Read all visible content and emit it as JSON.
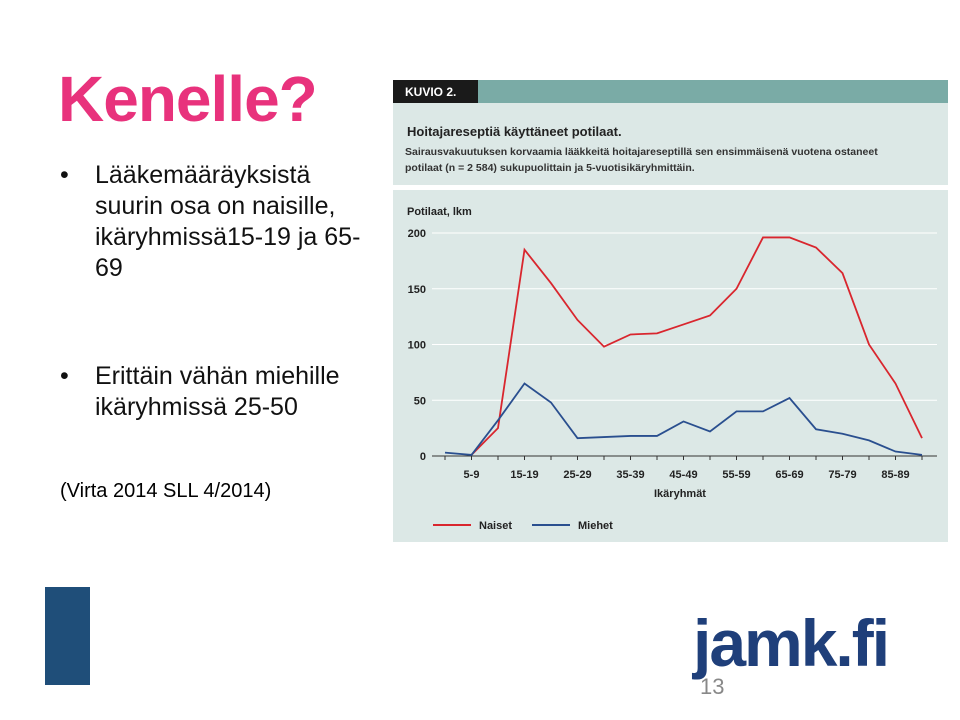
{
  "slide": {
    "title": "Kenelle?",
    "bullets": [
      "Lääkemääräyksistä suurin osa on naisille, ikäryhmissä15-19 ja 65-69",
      "Erittäin vähän miehille ikäryhmissä 25-50"
    ],
    "citation": "(Virta 2014 SLL 4/2014)",
    "logo": "jamk.fi",
    "page_number": "13"
  },
  "chart_data": {
    "type": "line",
    "figure_label": "KUVIO 2.",
    "title": "Hoitajareseptiä käyttäneet potilaat.",
    "subtitle": "Sairausvakuutuksen korvaamia lääkkeitä hoitajareseptillä sen ensimmäisenä vuotena ostaneet potilaat (n = 2 584) sukupuolittain ja 5-vuotisikäryhmittäin.",
    "y_label": "Potilaat, lkm",
    "x_label": "Ikäryhmät",
    "categories": [
      null,
      "5-9",
      null,
      "15-19",
      null,
      "25-29",
      null,
      "35-39",
      null,
      "45-49",
      null,
      "55-59",
      null,
      "65-69",
      null,
      "75-79",
      null,
      "85-89",
      null
    ],
    "series": [
      {
        "name": "Naiset",
        "color": "#d9262e",
        "values": [
          null,
          1,
          25,
          185,
          155,
          122,
          98,
          109,
          110,
          118,
          126,
          150,
          196,
          196,
          187,
          164,
          100,
          65,
          16
        ]
      },
      {
        "name": "Miehet",
        "color": "#2a4f8f",
        "values": [
          3,
          1,
          32,
          65,
          48,
          16,
          17,
          18,
          18,
          31,
          22,
          40,
          40,
          52,
          24,
          20,
          14,
          4,
          1
        ]
      }
    ],
    "ylim": [
      0,
      200
    ],
    "yticks": [
      0,
      50,
      100,
      150,
      200
    ],
    "grid": true
  }
}
